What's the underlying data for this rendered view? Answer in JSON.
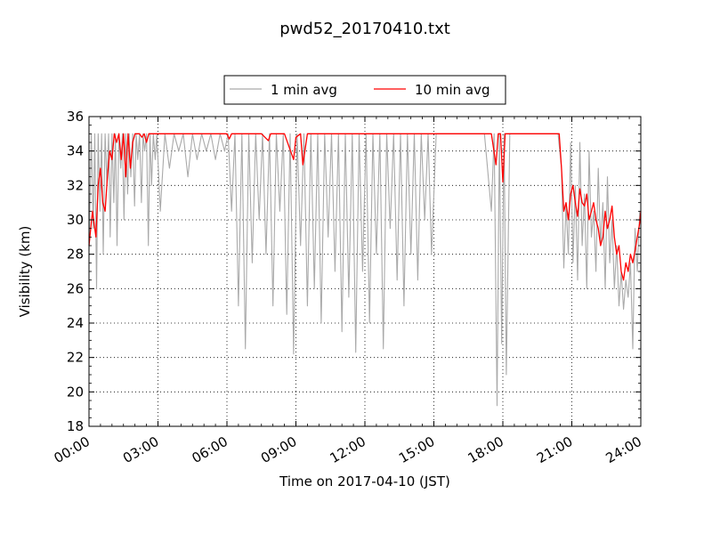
{
  "chart_data": {
    "type": "line",
    "title": "pwd52_20170410.txt",
    "xlabel": "Time on 2017-04-10 (JST)",
    "ylabel": "Visibility (km)",
    "xlim": [
      0,
      24
    ],
    "ylim": [
      18,
      36
    ],
    "xtick_values": [
      0,
      3,
      6,
      9,
      12,
      15,
      18,
      21,
      24
    ],
    "xtick_labels": [
      "00:00",
      "03:00",
      "06:00",
      "09:00",
      "12:00",
      "15:00",
      "18:00",
      "21:00",
      "24:00"
    ],
    "ytick_values": [
      18,
      20,
      22,
      24,
      26,
      28,
      30,
      32,
      34,
      36
    ],
    "ytick_labels": [
      "18",
      "20",
      "22",
      "24",
      "26",
      "28",
      "30",
      "32",
      "34",
      "36"
    ],
    "grid": true,
    "legend_position": "top-center",
    "series": [
      {
        "name": "1 min avg",
        "color": "#aaaaaa",
        "x": [
          0.0,
          0.1,
          0.18,
          0.25,
          0.33,
          0.4,
          0.48,
          0.55,
          0.62,
          0.7,
          0.78,
          0.85,
          0.92,
          1.0,
          1.08,
          1.15,
          1.22,
          1.3,
          1.38,
          1.45,
          1.52,
          1.6,
          1.68,
          1.75,
          1.82,
          1.9,
          1.98,
          2.05,
          2.12,
          2.2,
          2.28,
          2.35,
          2.42,
          2.5,
          2.58,
          2.65,
          2.72,
          2.8,
          2.88,
          2.95,
          3.1,
          3.3,
          3.5,
          3.7,
          3.9,
          4.1,
          4.3,
          4.5,
          4.7,
          4.9,
          5.1,
          5.3,
          5.5,
          5.7,
          5.9,
          6.05,
          6.2,
          6.35,
          6.5,
          6.65,
          6.8,
          6.95,
          7.1,
          7.25,
          7.4,
          7.55,
          7.7,
          7.85,
          8.0,
          8.15,
          8.3,
          8.45,
          8.6,
          8.75,
          8.9,
          9.05,
          9.2,
          9.35,
          9.5,
          9.65,
          9.8,
          9.95,
          10.1,
          10.25,
          10.4,
          10.55,
          10.7,
          10.85,
          11.0,
          11.15,
          11.3,
          11.45,
          11.6,
          11.75,
          11.9,
          12.05,
          12.2,
          12.35,
          12.5,
          12.65,
          12.8,
          12.95,
          13.1,
          13.25,
          13.4,
          13.55,
          13.7,
          13.85,
          14.0,
          14.15,
          14.3,
          14.45,
          14.6,
          14.75,
          14.9,
          15.1,
          15.4,
          15.7,
          16.0,
          16.3,
          16.6,
          16.9,
          17.2,
          17.5,
          17.62,
          17.75,
          17.85,
          17.95,
          18.05,
          18.15,
          18.3,
          18.6,
          18.9,
          19.2,
          19.5,
          19.8,
          20.1,
          20.4,
          20.55,
          20.65,
          20.75,
          20.85,
          20.95,
          21.05,
          21.15,
          21.25,
          21.35,
          21.45,
          21.55,
          21.65,
          21.75,
          21.85,
          21.95,
          22.05,
          22.15,
          22.25,
          22.35,
          22.45,
          22.55,
          22.65,
          22.75,
          22.85,
          22.95,
          23.05,
          23.15,
          23.25,
          23.35,
          23.45,
          23.55,
          23.65,
          23.75,
          23.85,
          23.95
        ],
        "y": [
          28.2,
          35.0,
          29.5,
          35.0,
          26.0,
          35.0,
          30.5,
          35.0,
          28.0,
          35.0,
          32.0,
          35.0,
          29.0,
          35.0,
          31.0,
          35.0,
          28.5,
          35.0,
          33.0,
          35.0,
          30.0,
          35.0,
          31.5,
          35.0,
          32.5,
          35.0,
          30.8,
          35.0,
          33.5,
          35.0,
          31.0,
          35.0,
          34.0,
          35.0,
          28.5,
          35.0,
          32.0,
          35.0,
          33.5,
          35.0,
          30.5,
          35.0,
          33.0,
          35.0,
          34.0,
          35.0,
          32.5,
          35.0,
          33.5,
          35.0,
          34.0,
          35.0,
          33.5,
          35.0,
          34.0,
          35.0,
          30.5,
          35.0,
          25.0,
          35.0,
          22.5,
          35.0,
          27.5,
          35.0,
          30.0,
          35.0,
          28.0,
          35.0,
          25.0,
          35.0,
          30.5,
          35.0,
          24.5,
          35.0,
          22.2,
          35.0,
          28.5,
          35.0,
          25.0,
          35.0,
          26.0,
          35.0,
          24.0,
          35.0,
          29.0,
          35.0,
          27.0,
          35.0,
          23.5,
          35.0,
          25.5,
          35.0,
          22.3,
          35.0,
          27.0,
          35.0,
          24.0,
          35.0,
          28.0,
          35.0,
          22.5,
          35.0,
          29.5,
          35.0,
          26.5,
          35.0,
          25.0,
          35.0,
          28.0,
          35.0,
          26.5,
          35.0,
          30.0,
          35.0,
          28.0,
          35.0,
          35.0,
          35.0,
          35.0,
          35.0,
          35.0,
          35.0,
          35.0,
          30.5,
          35.0,
          19.2,
          35.0,
          22.8,
          35.0,
          21.0,
          35.0,
          35.0,
          35.0,
          35.0,
          35.0,
          35.0,
          35.0,
          35.0,
          33.0,
          27.2,
          31.0,
          28.0,
          34.5,
          27.5,
          32.0,
          26.5,
          34.5,
          28.5,
          31.5,
          26.0,
          34.0,
          29.0,
          30.5,
          27.0,
          33.0,
          28.5,
          31.0,
          26.0,
          32.5,
          27.5,
          30.0,
          26.0,
          28.5,
          25.0,
          27.0,
          24.8,
          26.5,
          25.5,
          27.5,
          22.5,
          29.5,
          27.0,
          30.5
        ]
      },
      {
        "name": "10 min avg",
        "color": "#ff0000",
        "x": [
          0.0,
          0.15,
          0.3,
          0.4,
          0.5,
          0.6,
          0.7,
          0.8,
          0.9,
          1.0,
          1.1,
          1.2,
          1.3,
          1.4,
          1.5,
          1.6,
          1.7,
          1.8,
          1.9,
          2.0,
          2.1,
          2.2,
          2.3,
          2.4,
          2.5,
          2.6,
          2.7,
          2.8,
          2.9,
          3.0,
          3.5,
          4.0,
          4.5,
          5.0,
          5.5,
          6.0,
          6.1,
          6.2,
          6.3,
          6.5,
          7.0,
          7.5,
          7.8,
          7.9,
          8.0,
          8.5,
          8.9,
          9.0,
          9.2,
          9.3,
          9.5,
          10.0,
          10.5,
          11.0,
          11.5,
          12.0,
          12.5,
          13.0,
          13.5,
          14.0,
          14.5,
          15.0,
          15.5,
          16.0,
          16.5,
          17.0,
          17.5,
          17.7,
          17.8,
          17.9,
          18.0,
          18.1,
          18.2,
          18.5,
          19.0,
          19.5,
          20.0,
          20.3,
          20.45,
          20.55,
          20.65,
          20.75,
          20.85,
          20.95,
          21.05,
          21.15,
          21.25,
          21.35,
          21.45,
          21.55,
          21.65,
          21.75,
          21.85,
          21.95,
          22.05,
          22.15,
          22.25,
          22.35,
          22.45,
          22.55,
          22.65,
          22.75,
          22.85,
          22.95,
          23.05,
          23.15,
          23.25,
          23.35,
          23.45,
          23.55,
          23.65,
          23.75,
          23.85,
          23.95,
          24.0
        ],
        "y": [
          28.5,
          30.5,
          29.0,
          32.0,
          33.0,
          31.0,
          30.5,
          32.5,
          34.0,
          33.5,
          35.0,
          34.5,
          35.0,
          33.5,
          35.0,
          32.5,
          35.0,
          33.0,
          34.5,
          35.0,
          35.0,
          35.0,
          34.8,
          35.0,
          34.5,
          35.0,
          35.0,
          35.0,
          35.0,
          35.0,
          35.0,
          35.0,
          35.0,
          35.0,
          35.0,
          35.0,
          34.7,
          35.0,
          35.0,
          35.0,
          35.0,
          35.0,
          34.6,
          35.0,
          35.0,
          35.0,
          33.5,
          34.8,
          35.0,
          33.2,
          35.0,
          35.0,
          35.0,
          35.0,
          35.0,
          35.0,
          35.0,
          35.0,
          35.0,
          35.0,
          35.0,
          35.0,
          35.0,
          35.0,
          35.0,
          35.0,
          35.0,
          33.2,
          35.0,
          35.0,
          32.2,
          35.0,
          35.0,
          35.0,
          35.0,
          35.0,
          35.0,
          35.0,
          35.0,
          33.0,
          30.5,
          31.0,
          30.0,
          31.5,
          32.0,
          31.0,
          30.2,
          31.8,
          31.0,
          30.8,
          31.5,
          30.0,
          30.5,
          31.0,
          30.0,
          29.5,
          28.5,
          29.0,
          30.5,
          29.5,
          30.0,
          30.8,
          29.0,
          28.0,
          28.5,
          27.0,
          26.5,
          27.5,
          27.0,
          28.0,
          27.5,
          28.2,
          29.0,
          29.8,
          30.5
        ]
      }
    ]
  }
}
